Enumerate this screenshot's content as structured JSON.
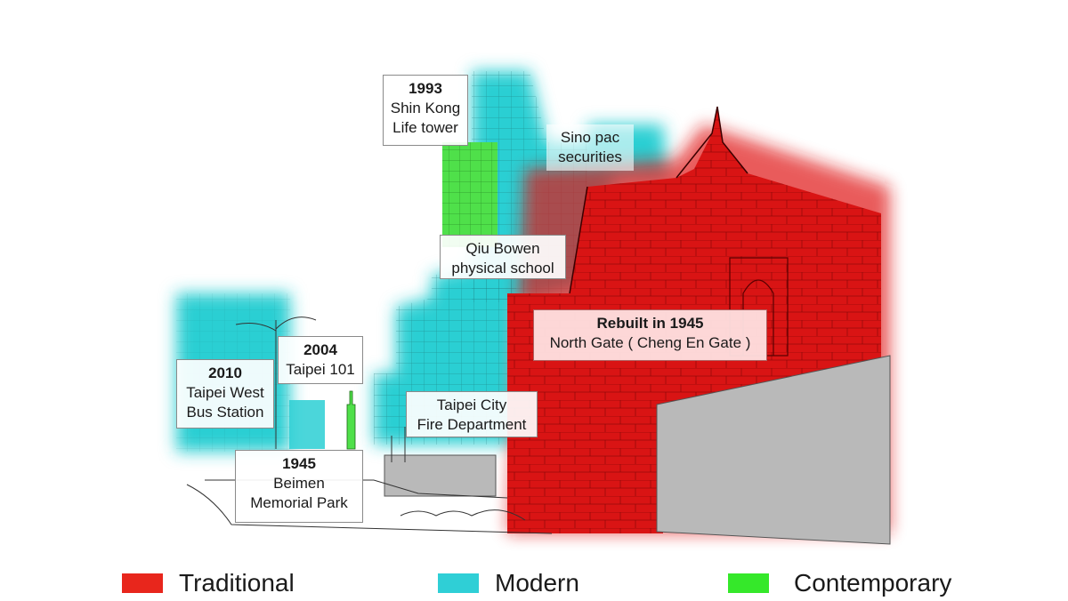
{
  "labels": {
    "shin_kong": {
      "year": "1993",
      "name": "Shin Kong\nLife tower"
    },
    "sinopac": {
      "year": "",
      "name": "Sino pac\nsecurities"
    },
    "qiu_bowen": {
      "year": "",
      "name": "Qiu Bowen\nphysical school"
    },
    "north_gate": {
      "year": "Rebuilt in 1945",
      "name": "North Gate ( Cheng En Gate )"
    },
    "taipei_101": {
      "year": "2004",
      "name": "Taipei 101"
    },
    "bus_station": {
      "year": "2010",
      "name": "Taipei West\nBus Station"
    },
    "fire_dept": {
      "year": "",
      "name": "Taipei City\nFire Department"
    },
    "beimen_park": {
      "year": "1945",
      "name": "Beimen\nMemorial Park"
    }
  },
  "legend": [
    {
      "label": "Traditional",
      "color": "#e8261c"
    },
    {
      "label": "Modern",
      "color": "#2fcfd6"
    },
    {
      "label": "Contemporary",
      "color": "#35e82a"
    }
  ],
  "colors": {
    "traditional": "#d91414",
    "modern": "#2ccfd3",
    "contemporary": "#4fe04a",
    "wall": "#b9b9b9"
  }
}
